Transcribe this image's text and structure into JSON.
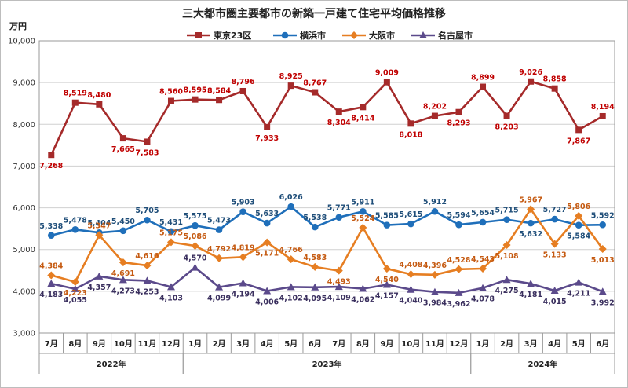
{
  "chart_data": {
    "type": "line",
    "title": "三大都市圏主要都市の新築一戸建て住宅平均価格推移",
    "unit_label": "万円",
    "ylim": [
      3000,
      10000
    ],
    "yticks": [
      "3,000",
      "4,000",
      "5,000",
      "6,000",
      "7,000",
      "8,000",
      "9,000",
      "10,000"
    ],
    "ytick_values": [
      3000,
      4000,
      5000,
      6000,
      7000,
      8000,
      9000,
      10000
    ],
    "grid": true,
    "legend_position": "top",
    "categories": [
      "7月",
      "8月",
      "9月",
      "10月",
      "11月",
      "12月",
      "1月",
      "2月",
      "3月",
      "4月",
      "5月",
      "6月",
      "7月",
      "8月",
      "9月",
      "10月",
      "11月",
      "12月",
      "1月",
      "2月",
      "3月",
      "4月",
      "5月",
      "6月"
    ],
    "year_groups": [
      {
        "label": "2022年",
        "start": 0,
        "end": 5
      },
      {
        "label": "2023年",
        "start": 6,
        "end": 17
      },
      {
        "label": "2024年",
        "start": 18,
        "end": 23
      }
    ],
    "series": [
      {
        "name": "東京23区",
        "color": "#a52a2a",
        "marker": "square",
        "values": [
          7268,
          8519,
          8480,
          7665,
          7583,
          8560,
          8595,
          8584,
          8796,
          7933,
          8925,
          8767,
          8304,
          8414,
          9009,
          8018,
          8202,
          8293,
          8899,
          8203,
          9026,
          8858,
          7867,
          8194
        ],
        "labels": [
          "7,268",
          "8,519",
          "8,480",
          "7,665",
          "7,583",
          "8,560",
          "8,595",
          "8,584",
          "8,796",
          "7,933",
          "8,925",
          "8,767",
          "8,304",
          "8,414",
          "9,009",
          "8,018",
          "8,202",
          "8,293",
          "8,899",
          "8,203",
          "9,026",
          "8,858",
          "7,867",
          "8,194"
        ],
        "label_pos": [
          "below",
          "above",
          "above",
          "below",
          "below",
          "above",
          "above",
          "above",
          "above",
          "below",
          "above",
          "above",
          "below",
          "below",
          "above",
          "below",
          "above",
          "below",
          "above",
          "below",
          "above",
          "above",
          "below",
          "above"
        ],
        "label_color": "#c00000"
      },
      {
        "name": "横浜市",
        "color": "#1f6fba",
        "marker": "circle",
        "values": [
          5338,
          5478,
          5404,
          5450,
          5705,
          5431,
          5575,
          5473,
          5903,
          5633,
          6026,
          5538,
          5771,
          5911,
          5585,
          5615,
          5912,
          5594,
          5654,
          5715,
          5632,
          5727,
          5584,
          5592
        ],
        "labels": [
          "5,338",
          "5,478",
          "5,404",
          "5,450",
          "5,705",
          "5,431",
          "5,575",
          "5,473",
          "5,903",
          "5,633",
          "6,026",
          "5,538",
          "5,771",
          "5,911",
          "5,585",
          "5,615",
          "5,912",
          "5,594",
          "5,654",
          "5,715",
          "5,632",
          "5,727",
          "5,584",
          "5,592"
        ],
        "label_pos": [
          "above",
          "above",
          "above",
          "above",
          "above",
          "above",
          "above",
          "above",
          "above",
          "above",
          "above",
          "above",
          "above",
          "above",
          "above",
          "above",
          "above",
          "above",
          "above",
          "above",
          "below",
          "above",
          "below",
          "above"
        ],
        "label_color": "#1f4e79"
      },
      {
        "name": "大阪市",
        "color": "#e67e22",
        "marker": "diamond",
        "values": [
          4384,
          4223,
          5347,
          4691,
          4616,
          5175,
          5086,
          4792,
          4819,
          5171,
          4766,
          4583,
          4493,
          5524,
          4540,
          4408,
          4396,
          4528,
          4543,
          5108,
          5967,
          5133,
          5806,
          5013
        ],
        "labels": [
          "4,384",
          "4,223",
          "5,347",
          "4,691",
          "4,616",
          "5,175",
          "5,086",
          "4,792",
          "4,819",
          "5,171",
          "4,766",
          "4,583",
          "4,493",
          "5,524",
          "4,540",
          "4,408",
          "4,396",
          "4,528",
          "4,543",
          "5,108",
          "5,967",
          "5,133",
          "5,806",
          "5,013"
        ],
        "label_pos": [
          "above",
          "below",
          "above",
          "below",
          "above",
          "above",
          "above",
          "above",
          "above",
          "below",
          "above",
          "above",
          "below",
          "above",
          "below",
          "above",
          "above",
          "above",
          "above",
          "below",
          "above",
          "below",
          "above",
          "below"
        ],
        "label_color": "#c55a11"
      },
      {
        "name": "名古屋市",
        "color": "#5b4a8b",
        "marker": "triangle",
        "values": [
          4183,
          4055,
          4357,
          4273,
          4253,
          4103,
          4570,
          4099,
          4194,
          4006,
          4102,
          4095,
          4109,
          4062,
          4157,
          4040,
          3984,
          3962,
          4078,
          4275,
          4181,
          4015,
          4211,
          3992
        ],
        "labels": [
          "4,183",
          "4,055",
          "4,357",
          "4,273",
          "4,253",
          "4,103",
          "4,570",
          "4,099",
          "4,194",
          "4,006",
          "4,102",
          "4,095",
          "4,109",
          "4,062",
          "4,157",
          "4,040",
          "3,984",
          "3,962",
          "4,078",
          "4,275",
          "4,181",
          "4,015",
          "4,211",
          "3,992"
        ],
        "label_pos": [
          "below",
          "below",
          "below",
          "below",
          "below",
          "below",
          "above",
          "below",
          "below",
          "below",
          "below",
          "below",
          "below",
          "below",
          "below",
          "below",
          "below",
          "below",
          "below",
          "below",
          "below",
          "below",
          "below",
          "below"
        ],
        "label_color": "#3a2f5e"
      }
    ]
  }
}
